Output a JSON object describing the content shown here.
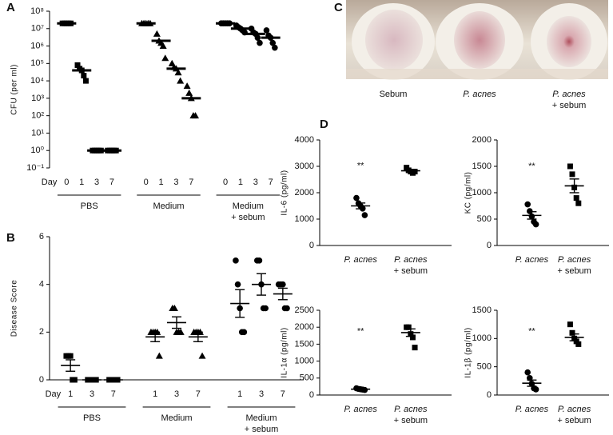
{
  "panels": [
    "A",
    "B",
    "C",
    "D"
  ],
  "photo_labels": [
    [
      "Sebum"
    ],
    [
      "P. acnes"
    ],
    [
      "P. acnes",
      "+ sebum"
    ]
  ],
  "chart_data": [
    {
      "type": "dot",
      "ylabel": "CFU (per ml)",
      "xlabel": "Day",
      "log": true,
      "color": "#000",
      "categories": [
        "0",
        "1",
        "3",
        "7",
        "0",
        "1",
        "3",
        "7",
        "0",
        "1",
        "3",
        "7"
      ],
      "groups": [
        [
          "PBS"
        ],
        [
          "Medium"
        ],
        [
          "Medium",
          "+ sebum"
        ]
      ],
      "markers": [
        "square",
        "square",
        "square",
        "square",
        "triangle",
        "triangle",
        "triangle",
        "triangle",
        "circle",
        "circle",
        "circle",
        "circle"
      ],
      "points": [
        [
          20000000,
          20000000,
          20000000,
          20000000,
          20000000
        ],
        [
          80000.0,
          50000,
          40000,
          20000,
          10000
        ],
        [
          1,
          1,
          1,
          1,
          1
        ],
        [
          1,
          1,
          1,
          1,
          1
        ],
        [
          20000000,
          20000000,
          20000000,
          20000000,
          20000000
        ],
        [
          5000000,
          2000000,
          1500000,
          1000000,
          200000
        ],
        [
          100000,
          60000,
          50000,
          30000,
          10000
        ],
        [
          5000,
          2000,
          1000,
          100,
          100
        ],
        [
          20000000,
          20000000,
          20000000,
          20000000,
          20000000
        ],
        [
          15000000,
          12000000,
          10000000,
          8000000,
          6000000
        ],
        [
          10000000,
          6000000,
          5000000,
          3000000,
          1500000
        ],
        [
          8000000,
          4000000,
          3000000,
          1500000,
          800000
        ]
      ],
      "means": [
        20000000,
        40000,
        1,
        1,
        20000000,
        2000000,
        50000,
        1000,
        20000000,
        10000000,
        5000000,
        3000000
      ],
      "ylim": [
        0.1,
        100000000
      ],
      "yticks": [
        {
          "value": 0.1,
          "label": "10⁻¹"
        },
        {
          "value": 1,
          "label": "10⁰"
        },
        {
          "value": 10,
          "label": "10¹"
        },
        {
          "value": 100,
          "label": "10²"
        },
        {
          "value": 1000,
          "label": "10³"
        },
        {
          "value": 10000,
          "label": "10⁴"
        },
        {
          "value": 100000,
          "label": "10⁵"
        },
        {
          "value": 1000000,
          "label": "10⁶"
        },
        {
          "value": 10000000,
          "label": "10⁷"
        },
        {
          "value": 100000000,
          "label": "10⁸"
        }
      ]
    },
    {
      "type": "dot",
      "ylabel": "Disease Score",
      "xlabel": "Day",
      "color": "#000",
      "categories": [
        "1",
        "3",
        "7",
        "1",
        "3",
        "7",
        "1",
        "3",
        "7"
      ],
      "groups": [
        [
          "PBS"
        ],
        [
          "Medium"
        ],
        [
          "Medium",
          "+ sebum"
        ]
      ],
      "markers": [
        "square",
        "square",
        "square",
        "triangle",
        "triangle",
        "triangle",
        "circle",
        "circle",
        "circle"
      ],
      "points": [
        [
          1,
          1,
          1,
          0,
          0
        ],
        [
          0,
          0,
          0,
          0,
          0
        ],
        [
          0,
          0,
          0,
          0,
          0
        ],
        [
          2,
          2,
          2,
          2,
          1
        ],
        [
          3,
          3,
          2,
          2,
          2
        ],
        [
          2,
          2,
          2,
          2,
          1
        ],
        [
          5,
          4,
          3,
          2,
          2
        ],
        [
          5,
          5,
          4,
          3,
          3
        ],
        [
          4,
          4,
          4,
          3,
          3
        ]
      ],
      "means": [
        0.6,
        0,
        0,
        1.8,
        2.4,
        1.8,
        3.2,
        4,
        3.6
      ],
      "sem": [
        0.24,
        0,
        0,
        0.2,
        0.24,
        0.2,
        0.58,
        0.45,
        0.24
      ],
      "ylim": [
        0,
        6
      ],
      "yticks": [
        0,
        2,
        4,
        6
      ]
    },
    {
      "type": "dot",
      "ylabel": "IL-6 (pg/ml)",
      "color": "#000",
      "italic_first_line": true,
      "annotation": "**",
      "categories": [
        [
          "P. acnes"
        ],
        [
          "P. acnes",
          "+ sebum"
        ]
      ],
      "markers": [
        "circle",
        "square"
      ],
      "points": [
        [
          1800,
          1600,
          1500,
          1400,
          1150
        ],
        [
          2950,
          2850,
          2800,
          2750,
          2800
        ]
      ],
      "means": [
        1500,
        2830
      ],
      "sem": [
        110,
        35
      ],
      "ylim": [
        0,
        4000
      ],
      "yticks": [
        0,
        1000,
        2000,
        3000,
        4000
      ]
    },
    {
      "type": "dot",
      "ylabel": "KC (pg/ml)",
      "color": "#000",
      "italic_first_line": true,
      "annotation": "**",
      "categories": [
        [
          "P. acnes"
        ],
        [
          "P. acnes",
          "+ sebum"
        ]
      ],
      "markers": [
        "circle",
        "square"
      ],
      "points": [
        [
          780,
          650,
          550,
          450,
          400
        ],
        [
          1500,
          1350,
          1100,
          900,
          800
        ]
      ],
      "means": [
        570,
        1130
      ],
      "sem": [
        70,
        130
      ],
      "ylim": [
        0,
        2000
      ],
      "yticks": [
        0,
        500,
        1000,
        1500,
        2000
      ]
    },
    {
      "type": "dot",
      "ylabel": "IL-1α (pg/ml)",
      "color": "#000",
      "italic_first_line": true,
      "annotation": "**",
      "categories": [
        [
          "P. acnes"
        ],
        [
          "P. acnes",
          "+ sebum"
        ]
      ],
      "markers": [
        "circle",
        "square"
      ],
      "points": [
        [
          200,
          180,
          170,
          160,
          150
        ],
        [
          2000,
          2000,
          1800,
          1700,
          1400
        ]
      ],
      "means": [
        172,
        1840
      ],
      "sem": [
        8,
        110
      ],
      "ylim": [
        0,
        2500
      ],
      "yticks": [
        0,
        500,
        1000,
        1500,
        2000,
        2500
      ]
    },
    {
      "type": "dot",
      "ylabel": "IL-1β (pg/ml)",
      "color": "#000",
      "italic_first_line": true,
      "annotation": "**",
      "categories": [
        [
          "P. acnes"
        ],
        [
          "P. acnes",
          "+ sebum"
        ]
      ],
      "markers": [
        "circle",
        "square"
      ],
      "points": [
        [
          400,
          300,
          200,
          120,
          100
        ],
        [
          1250,
          1100,
          1000,
          950,
          900
        ]
      ],
      "means": [
        210,
        1020
      ],
      "sem": [
        55,
        60
      ],
      "ylim": [
        0,
        1500
      ],
      "yticks": [
        0,
        500,
        1000,
        1500
      ]
    }
  ]
}
